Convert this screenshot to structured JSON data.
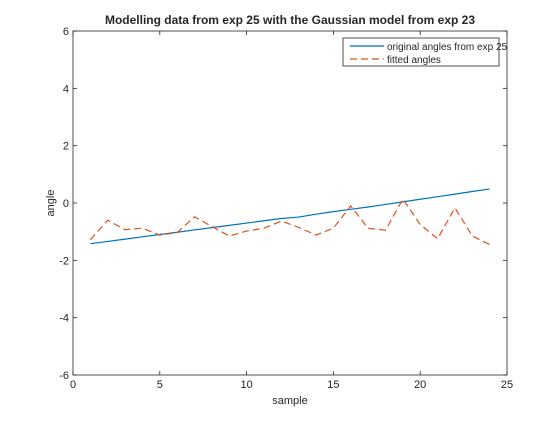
{
  "chart_data": {
    "type": "line",
    "title": "Modelling data from exp 25 with the Gaussian model from exp 23",
    "xlabel": "sample",
    "ylabel": "angle",
    "xlim": [
      0,
      25
    ],
    "ylim": [
      -6,
      6
    ],
    "xticks": [
      0,
      5,
      10,
      15,
      20,
      25
    ],
    "yticks": [
      -6,
      -4,
      -2,
      0,
      2,
      4,
      6
    ],
    "grid": false,
    "legend_position": "top-right",
    "x": [
      1,
      2,
      3,
      4,
      5,
      6,
      7,
      8,
      9,
      10,
      11,
      12,
      13,
      14,
      15,
      16,
      17,
      18,
      19,
      20,
      21,
      22,
      23,
      24
    ],
    "series": [
      {
        "name": "original angles from exp 25",
        "color": "#0072BD",
        "style": "solid",
        "values": [
          -1.42,
          -1.34,
          -1.26,
          -1.18,
          -1.1,
          -1.02,
          -0.94,
          -0.86,
          -0.78,
          -0.7,
          -0.62,
          -0.54,
          -0.49,
          -0.39,
          -0.3,
          -0.22,
          -0.14,
          -0.05,
          0.04,
          0.13,
          0.22,
          0.31,
          0.4,
          0.49
        ]
      },
      {
        "name": "fitted angles",
        "color": "#D95319",
        "style": "dashed",
        "values": [
          -1.28,
          -0.6,
          -0.93,
          -0.88,
          -1.12,
          -1.03,
          -0.48,
          -0.82,
          -1.15,
          -0.98,
          -0.88,
          -0.63,
          -0.85,
          -1.12,
          -0.88,
          -0.1,
          -0.88,
          -0.95,
          0.14,
          -0.75,
          -1.25,
          -0.17,
          -1.15,
          -1.45
        ]
      }
    ]
  }
}
